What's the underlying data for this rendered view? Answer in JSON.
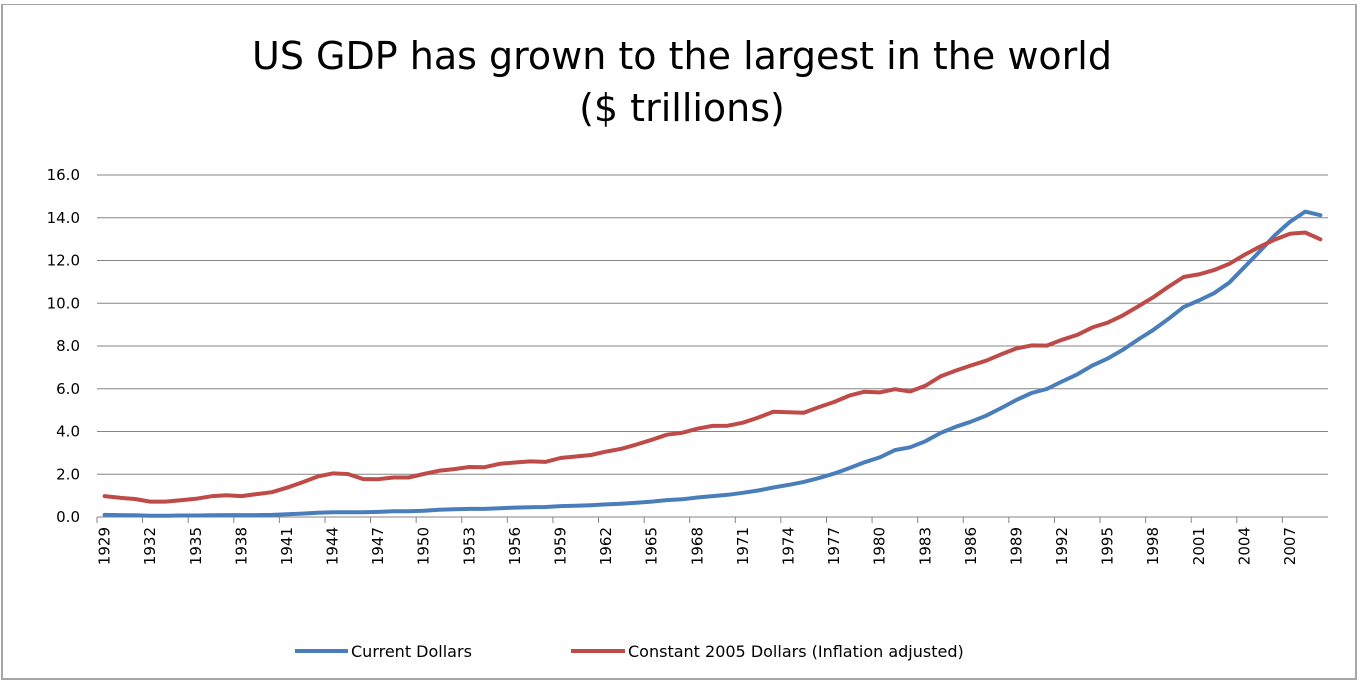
{
  "chart_data": {
    "type": "line",
    "title": "US GDP has grown to the largest in the world",
    "subtitle": "($ trillions)",
    "xlabel": "",
    "ylabel": "",
    "ylim": [
      0,
      16
    ],
    "y_ticks": [
      "0.0",
      "2.0",
      "4.0",
      "6.0",
      "8.0",
      "10.0",
      "12.0",
      "14.0",
      "16.0"
    ],
    "x_tick_labels": [
      "1929",
      "1932",
      "1935",
      "1938",
      "1941",
      "1944",
      "1947",
      "1950",
      "1953",
      "1956",
      "1959",
      "1962",
      "1965",
      "1968",
      "1971",
      "1974",
      "1977",
      "1980",
      "1983",
      "1986",
      "1989",
      "1992",
      "1995",
      "1998",
      "2001",
      "2004",
      "2007"
    ],
    "grid": "horizontal",
    "legend_position": "bottom",
    "x": [
      1929,
      1930,
      1931,
      1932,
      1933,
      1934,
      1935,
      1936,
      1937,
      1938,
      1939,
      1940,
      1941,
      1942,
      1943,
      1944,
      1945,
      1946,
      1947,
      1948,
      1949,
      1950,
      1951,
      1952,
      1953,
      1954,
      1955,
      1956,
      1957,
      1958,
      1959,
      1960,
      1961,
      1962,
      1963,
      1964,
      1965,
      1966,
      1967,
      1968,
      1969,
      1970,
      1971,
      1972,
      1973,
      1974,
      1975,
      1976,
      1977,
      1978,
      1979,
      1980,
      1981,
      1982,
      1983,
      1984,
      1985,
      1986,
      1987,
      1988,
      1989,
      1990,
      1991,
      1992,
      1993,
      1994,
      1995,
      1996,
      1997,
      1998,
      1999,
      2000,
      2001,
      2002,
      2003,
      2004,
      2005,
      2006,
      2007,
      2008,
      2009
    ],
    "series": [
      {
        "name": "Current Dollars",
        "color": "#4a7ebb",
        "values": [
          0.1,
          0.09,
          0.08,
          0.06,
          0.06,
          0.07,
          0.07,
          0.08,
          0.09,
          0.09,
          0.09,
          0.1,
          0.13,
          0.16,
          0.2,
          0.22,
          0.22,
          0.22,
          0.24,
          0.27,
          0.27,
          0.29,
          0.34,
          0.36,
          0.38,
          0.38,
          0.41,
          0.44,
          0.46,
          0.47,
          0.51,
          0.53,
          0.55,
          0.59,
          0.62,
          0.67,
          0.72,
          0.79,
          0.83,
          0.91,
          0.98,
          1.04,
          1.13,
          1.24,
          1.38,
          1.5,
          1.64,
          1.82,
          2.03,
          2.29,
          2.56,
          2.79,
          3.13,
          3.26,
          3.54,
          3.93,
          4.22,
          4.46,
          4.74,
          5.1,
          5.48,
          5.8,
          5.99,
          6.34,
          6.67,
          7.09,
          7.41,
          7.82,
          8.3,
          8.75,
          9.27,
          9.82,
          10.13,
          10.47,
          10.96,
          11.69,
          12.42,
          13.18,
          13.81,
          14.29,
          14.12
        ]
      },
      {
        "name": "Constant 2005 Dollars (Inflation adjusted)",
        "color": "#be4b48",
        "values": [
          0.98,
          0.9,
          0.84,
          0.72,
          0.72,
          0.78,
          0.85,
          0.97,
          1.02,
          0.98,
          1.07,
          1.16,
          1.37,
          1.62,
          1.89,
          2.04,
          2.01,
          1.78,
          1.77,
          1.85,
          1.85,
          2.01,
          2.16,
          2.24,
          2.34,
          2.33,
          2.49,
          2.55,
          2.6,
          2.58,
          2.76,
          2.83,
          2.9,
          3.06,
          3.19,
          3.39,
          3.61,
          3.85,
          3.94,
          4.13,
          4.26,
          4.27,
          4.41,
          4.65,
          4.92,
          4.9,
          4.88,
          5.14,
          5.38,
          5.68,
          5.86,
          5.83,
          5.98,
          5.87,
          6.14,
          6.58,
          6.85,
          7.09,
          7.31,
          7.61,
          7.89,
          8.03,
          8.02,
          8.29,
          8.52,
          8.87,
          9.09,
          9.43,
          9.85,
          10.28,
          10.77,
          11.23,
          11.35,
          11.55,
          11.84,
          12.26,
          12.64,
          12.98,
          13.25,
          13.31,
          12.99
        ]
      }
    ]
  }
}
